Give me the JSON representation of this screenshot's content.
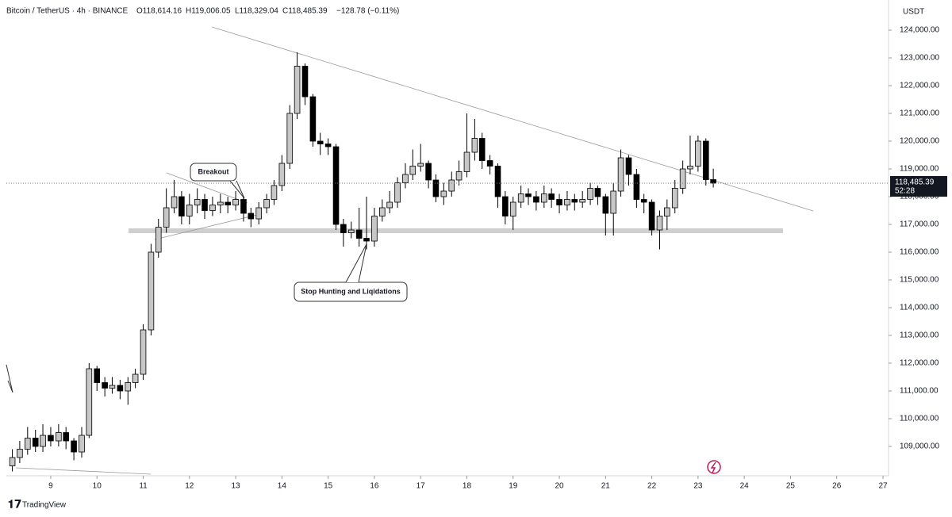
{
  "header": {
    "symbol": "Bitcoin / TetherUS · 4h · BINANCE",
    "open": "O118,614.16",
    "high": "H119,006.05",
    "low": "L118,329.04",
    "close": "C118,485.39",
    "change": "−128.78 (−0.11%)"
  },
  "chart_data": {
    "type": "candlestick",
    "currency": "USDT",
    "annotations": [
      "Breakout",
      "Stop Hunting and Liqidations"
    ],
    "price_label": "118,485.39",
    "countdown": "52:28",
    "brand": "TradingView",
    "up_color": "#c7c7c7",
    "down_color": "#000000",
    "grid": false,
    "xlim": [
      8.04,
      27.12
    ],
    "ylim": [
      107943,
      125086
    ],
    "xticks": [
      9,
      10,
      11,
      12,
      13,
      14,
      15,
      16,
      17,
      18,
      19,
      20,
      21,
      22,
      23,
      24,
      25,
      26,
      27
    ],
    "yticks": [
      {
        "value": 109000,
        "label": "109,000.00"
      },
      {
        "value": 110000,
        "label": "110,000.00"
      },
      {
        "value": 111000,
        "label": "111,000.00"
      },
      {
        "value": 112000,
        "label": "112,000.00"
      },
      {
        "value": 113000,
        "label": "113,000.00"
      },
      {
        "value": 114000,
        "label": "114,000.00"
      },
      {
        "value": 115000,
        "label": "115,000.00"
      },
      {
        "value": 116000,
        "label": "116,000.00"
      },
      {
        "value": 117000,
        "label": "117,000.00"
      },
      {
        "value": 118000,
        "label": "118,000.00"
      },
      {
        "value": 119000,
        "label": "119,000.00"
      },
      {
        "value": 120000,
        "label": "120,000.00"
      },
      {
        "value": 121000,
        "label": "121,000.00"
      },
      {
        "value": 122000,
        "label": "122,000.00"
      },
      {
        "value": 123000,
        "label": "123,000.00"
      },
      {
        "value": 124000,
        "label": "124,000.00"
      }
    ],
    "x": [
      8.17,
      8.33,
      8.5,
      8.67,
      8.83,
      9,
      9.17,
      9.33,
      9.5,
      9.67,
      9.83,
      10,
      10.17,
      10.33,
      10.5,
      10.67,
      10.83,
      11,
      11.17,
      11.33,
      11.5,
      11.67,
      11.83,
      12,
      12.17,
      12.33,
      12.5,
      12.67,
      12.83,
      13,
      13.17,
      13.33,
      13.5,
      13.67,
      13.83,
      14,
      14.17,
      14.33,
      14.5,
      14.67,
      14.83,
      15,
      15.17,
      15.33,
      15.5,
      15.67,
      15.83,
      16,
      16.17,
      16.33,
      16.5,
      16.67,
      16.83,
      17,
      17.17,
      17.33,
      17.5,
      17.67,
      17.83,
      18,
      18.17,
      18.33,
      18.5,
      18.67,
      18.83,
      19,
      19.17,
      19.33,
      19.5,
      19.67,
      19.83,
      20,
      20.17,
      20.33,
      20.5,
      20.67,
      20.83,
      21,
      21.17,
      21.33,
      21.5,
      21.67,
      21.83,
      22,
      22.17,
      22.33,
      22.5,
      22.67,
      22.83,
      23,
      23.17,
      23.33
    ],
    "open": [
      108300,
      108600,
      108900,
      109300,
      109000,
      109400,
      109200,
      109500,
      109200,
      108800,
      109400,
      111800,
      111300,
      111100,
      111200,
      111000,
      111300,
      111600,
      113200,
      116000,
      116900,
      117600,
      118000,
      117300,
      117700,
      117900,
      117500,
      117700,
      117800,
      117700,
      117900,
      117400,
      117200,
      117600,
      117900,
      118400,
      119200,
      121000,
      122700,
      121600,
      120000,
      119900,
      119800,
      117000,
      116700,
      116800,
      116500,
      116400,
      117300,
      117600,
      117800,
      118500,
      118800,
      119100,
      119200,
      118600,
      118000,
      118200,
      118600,
      118900,
      119600,
      120100,
      119300,
      119100,
      118000,
      117300,
      117800,
      118100,
      118000,
      117800,
      118100,
      117900,
      117700,
      117900,
      117800,
      117900,
      118300,
      118000,
      117400,
      118200,
      119400,
      118800,
      117900,
      117800,
      116800,
      117300,
      117600,
      118300,
      119000,
      119100,
      120000,
      118614.16
    ],
    "high": [
      108900,
      109200,
      109700,
      109600,
      109800,
      109700,
      109800,
      109700,
      109300,
      109700,
      112000,
      111900,
      111500,
      111500,
      111400,
      111500,
      111800,
      113400,
      116300,
      117200,
      118300,
      118600,
      118200,
      118100,
      118300,
      118100,
      118000,
      118100,
      118000,
      118200,
      118000,
      117600,
      117800,
      118100,
      118600,
      119500,
      121300,
      123200,
      122800,
      121700,
      120300,
      120100,
      119900,
      117200,
      117100,
      117600,
      118000,
      117600,
      117900,
      118200,
      118700,
      119200,
      119700,
      119900,
      119300,
      118800,
      118500,
      118900,
      119300,
      121000,
      120800,
      120300,
      119500,
      119200,
      118200,
      118000,
      118400,
      118300,
      118200,
      118400,
      118300,
      118100,
      118200,
      118100,
      118200,
      118500,
      118400,
      118100,
      118500,
      119700,
      119500,
      119000,
      118100,
      117900,
      117500,
      117900,
      118600,
      119300,
      120200,
      120200,
      120100,
      119006.05
    ],
    "low": [
      108100,
      108400,
      108700,
      108800,
      108800,
      109000,
      109000,
      108900,
      108500,
      108600,
      109300,
      111000,
      110800,
      110900,
      110700,
      110500,
      111100,
      111400,
      113000,
      115800,
      116700,
      117400,
      117000,
      117000,
      117400,
      117200,
      117300,
      117400,
      117400,
      117500,
      117100,
      116900,
      117000,
      117400,
      117700,
      118200,
      119000,
      120800,
      121300,
      119800,
      119500,
      119500,
      116800,
      116200,
      116500,
      116200,
      116100,
      116200,
      117100,
      117400,
      117600,
      118300,
      118600,
      118900,
      118300,
      117800,
      117700,
      118000,
      118400,
      118700,
      119300,
      119000,
      118800,
      117600,
      117000,
      116800,
      117600,
      117700,
      117500,
      117600,
      117600,
      117400,
      117500,
      117500,
      117600,
      117700,
      117700,
      116600,
      116600,
      118000,
      118400,
      117600,
      117400,
      116600,
      116100,
      116800,
      117400,
      118100,
      118800,
      118900,
      118400,
      118329.04
    ],
    "close": [
      108600,
      108900,
      109300,
      109000,
      109400,
      109200,
      109500,
      109200,
      108800,
      109400,
      111800,
      111300,
      111100,
      111200,
      111000,
      111300,
      111600,
      113200,
      116000,
      116900,
      117600,
      118000,
      117300,
      117700,
      117900,
      117500,
      117700,
      117800,
      117700,
      117900,
      117400,
      117200,
      117600,
      117900,
      118400,
      119200,
      121000,
      122700,
      121600,
      120000,
      119900,
      119800,
      117000,
      116700,
      116800,
      116500,
      116400,
      117300,
      117600,
      117800,
      118500,
      118800,
      119100,
      119200,
      118600,
      118000,
      118200,
      118600,
      118900,
      119600,
      120100,
      119300,
      119100,
      118000,
      117300,
      117800,
      118100,
      118000,
      117800,
      118100,
      117900,
      117700,
      117900,
      117800,
      117900,
      118300,
      118000,
      117400,
      118200,
      119400,
      118800,
      117900,
      117800,
      116800,
      117300,
      117600,
      118300,
      119000,
      119100,
      120000,
      118614.16,
      118485.39
    ]
  }
}
